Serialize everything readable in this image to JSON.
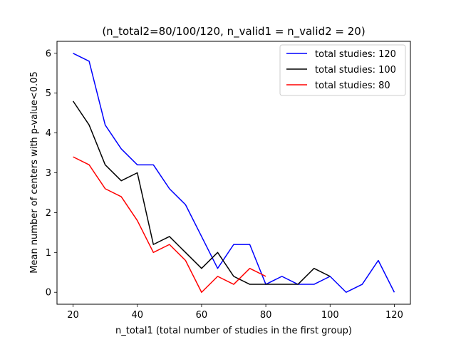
{
  "chart_data": {
    "type": "line",
    "title": "(n_total2=80/100/120, n_valid1 = n_valid2 = 20)",
    "xlabel": "n_total1 (total number of studies in the first group)",
    "ylabel": "Mean number of centers with p-value<0.05",
    "xlim": [
      15,
      125
    ],
    "ylim": [
      -0.3,
      6.3
    ],
    "xticks": [
      20,
      40,
      60,
      80,
      100,
      120
    ],
    "yticks": [
      0,
      1,
      2,
      3,
      4,
      5,
      6
    ],
    "grid": false,
    "legend_position": "top-right",
    "series": [
      {
        "name": "total studies: 120",
        "color": "#0000ff",
        "x": [
          20,
          25,
          30,
          35,
          40,
          45,
          50,
          55,
          60,
          65,
          70,
          75,
          80,
          85,
          90,
          95,
          100,
          105,
          110,
          115,
          120
        ],
        "y": [
          6.0,
          5.8,
          4.2,
          3.6,
          3.2,
          3.2,
          2.6,
          2.2,
          1.4,
          0.6,
          1.2,
          1.2,
          0.2,
          0.4,
          0.2,
          0.2,
          0.4,
          0.0,
          0.2,
          0.8,
          0.0
        ]
      },
      {
        "name": "total studies: 100",
        "color": "#000000",
        "x": [
          20,
          25,
          30,
          35,
          40,
          45,
          50,
          55,
          60,
          65,
          70,
          75,
          80,
          85,
          90,
          95,
          100
        ],
        "y": [
          4.8,
          4.2,
          3.2,
          2.8,
          3.0,
          1.2,
          1.4,
          1.0,
          0.6,
          1.0,
          0.4,
          0.2,
          0.2,
          0.2,
          0.2,
          0.6,
          0.4
        ]
      },
      {
        "name": "total studies: 80",
        "color": "#ff0000",
        "x": [
          20,
          25,
          30,
          35,
          40,
          45,
          50,
          55,
          60,
          65,
          70,
          75,
          80
        ],
        "y": [
          3.4,
          3.2,
          2.6,
          2.4,
          1.8,
          1.0,
          1.2,
          0.8,
          0.0,
          0.4,
          0.2,
          0.6,
          0.4
        ]
      }
    ]
  }
}
